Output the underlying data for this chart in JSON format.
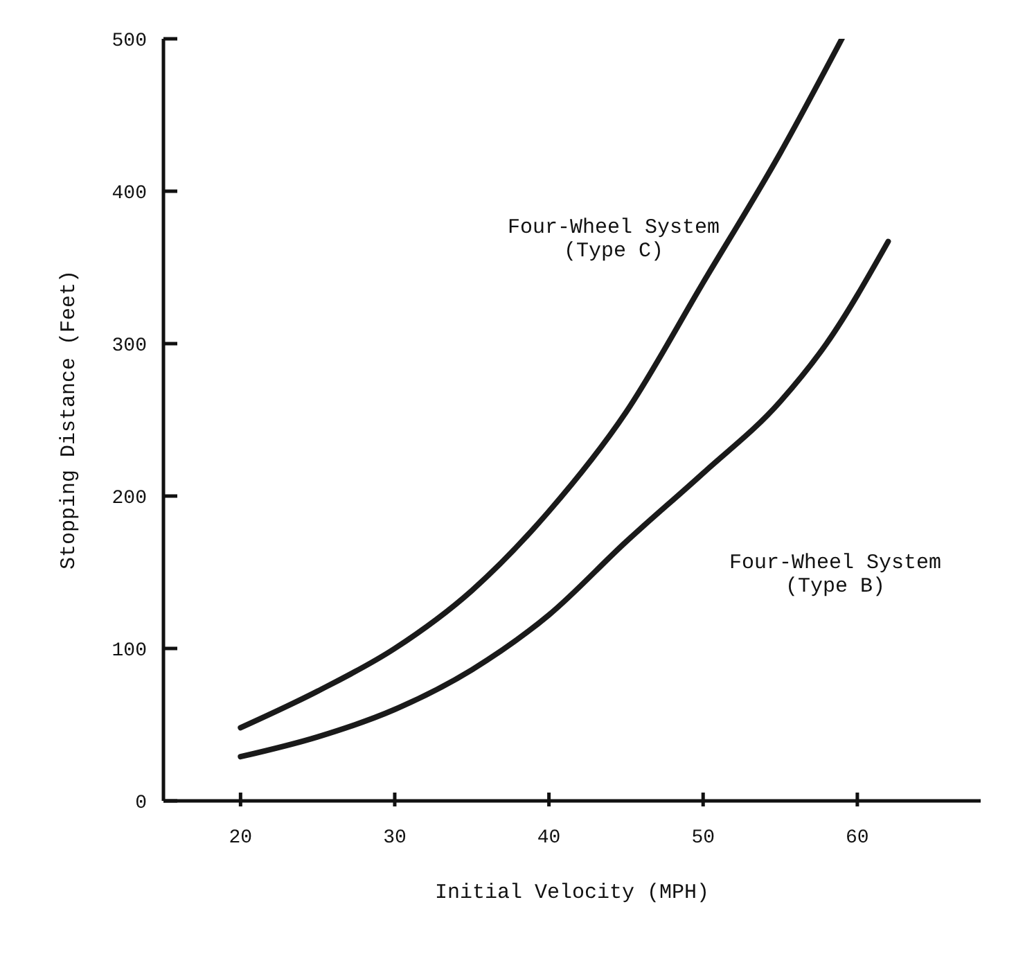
{
  "chart_data": {
    "type": "line",
    "xlabel": "Initial Velocity (MPH)",
    "ylabel": "Stopping Distance (Feet)",
    "xlim": [
      15,
      68
    ],
    "xticks": [
      20,
      30,
      40,
      50,
      60
    ],
    "ylim": [
      0,
      500
    ],
    "yticks": [
      0,
      100,
      200,
      300,
      400,
      500
    ],
    "grid": false,
    "legend": false,
    "marker": "none",
    "line_style": "solid",
    "series": [
      {
        "color": "#1a1a1a",
        "x": [
          20,
          25,
          30,
          35,
          40,
          45,
          50,
          55,
          59
        ],
        "values": [
          48,
          72,
          100,
          138,
          190,
          255,
          340,
          425,
          500
        ]
      },
      {
        "color": "#1a1a1a",
        "x": [
          20,
          25,
          30,
          35,
          40,
          45,
          50,
          55,
          58,
          62
        ],
        "values": [
          29,
          42,
          60,
          86,
          122,
          170,
          215,
          262,
          300,
          367
        ]
      }
    ],
    "annotations": [
      "Four-Wheel System (Type C)",
      "Four-Wheel System (Type B)"
    ]
  }
}
